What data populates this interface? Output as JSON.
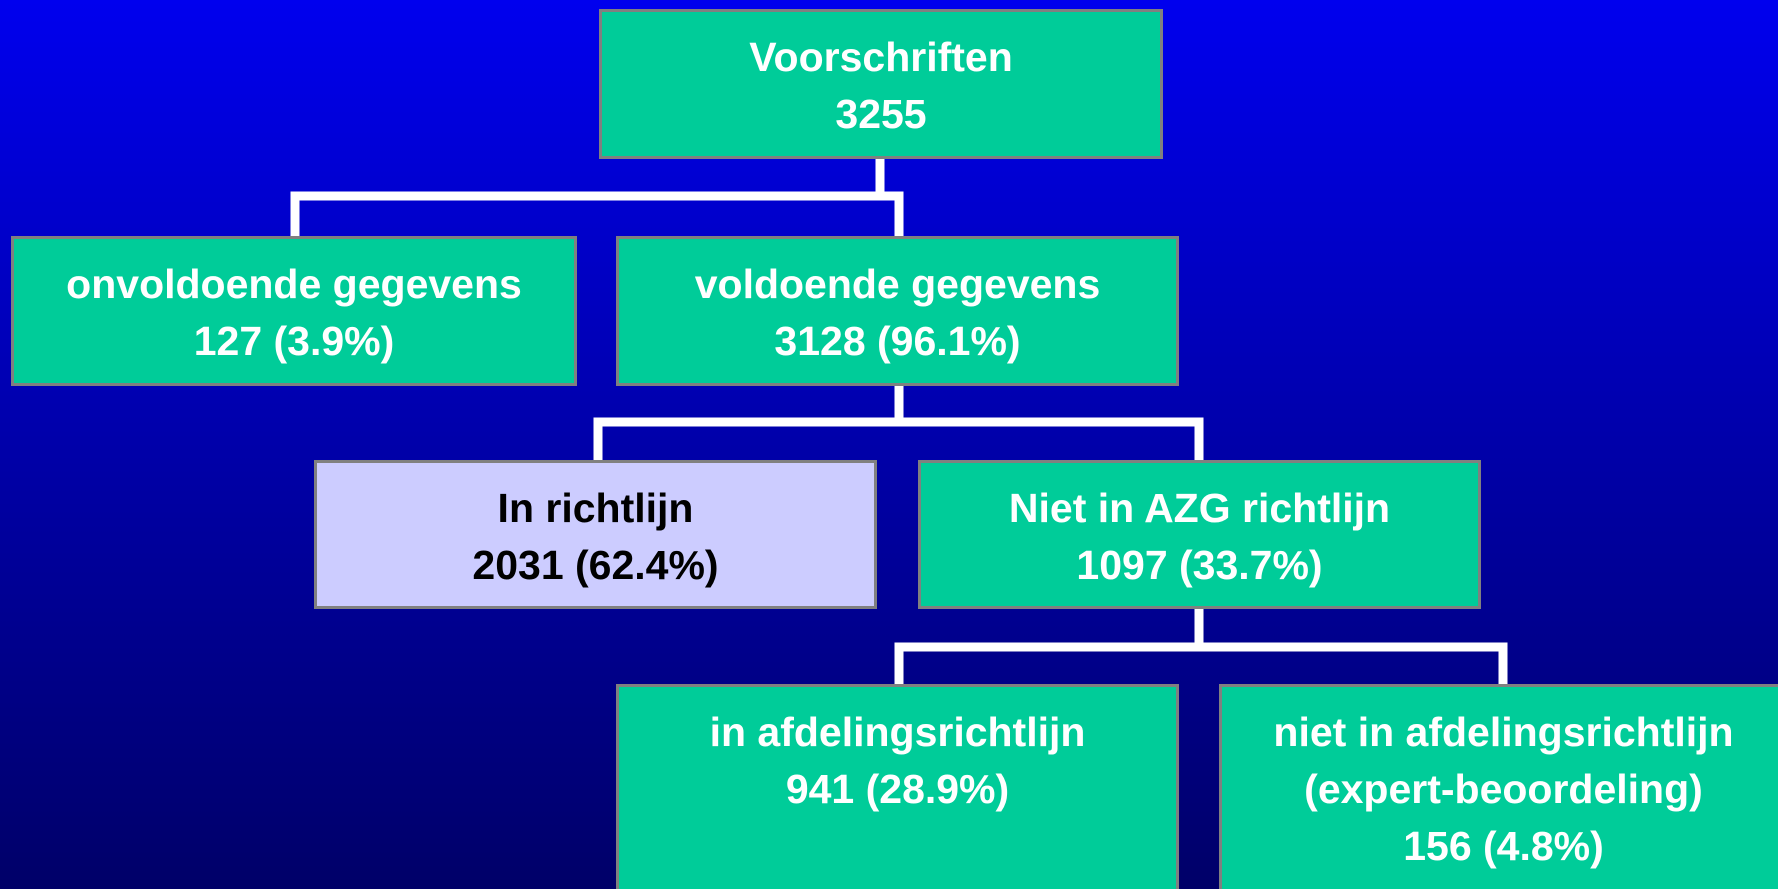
{
  "nodes": [
    {
      "lines": [
        "Voorschriften",
        "3255"
      ]
    },
    {
      "lines": [
        "onvoldoende gegevens",
        "127 (3.9%)"
      ]
    },
    {
      "lines": [
        "voldoende gegevens",
        "3128 (96.1%)"
      ]
    },
    {
      "lines": [
        "In richtlijn",
        "2031 (62.4%)"
      ]
    },
    {
      "lines": [
        "Niet in AZG richtlijn",
        "1097 (33.7%)"
      ]
    },
    {
      "lines": [
        "in afdelingsrichtlijn",
        "941 (28.9%)"
      ]
    },
    {
      "lines": [
        "niet in afdelingsrichtlijn",
        "(expert-beoordeling)",
        "156 (4.8%)"
      ]
    }
  ]
}
